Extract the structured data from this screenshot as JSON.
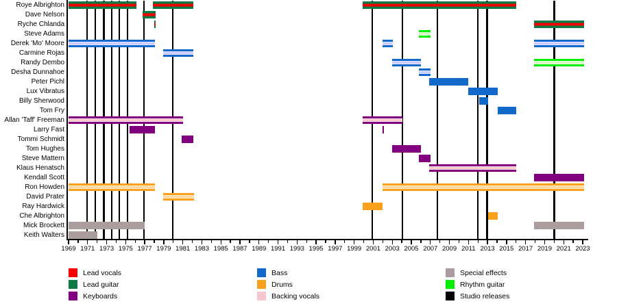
{
  "chart_data": {
    "type": "timeline",
    "title": "",
    "x_axis": {
      "min": 1969,
      "max": 2023,
      "tick_step": 1,
      "label_step": 2,
      "tick_labels": [
        "1969",
        "1971",
        "1973",
        "1975",
        "1977",
        "1979",
        "1981",
        "1983",
        "1985",
        "1987",
        "1989",
        "1991",
        "1993",
        "1995",
        "1997",
        "1999",
        "2001",
        "2003",
        "2005",
        "2007",
        "2009",
        "2011",
        "2013",
        "2015",
        "2017",
        "2019",
        "2021",
        "2023"
      ]
    },
    "roles": {
      "lead_vocals": {
        "label": "Lead vocals",
        "color": "#f40000"
      },
      "lead_guitar": {
        "label": "Lead guitar",
        "color": "#0e7a46"
      },
      "keyboards": {
        "label": "Keyboards",
        "color": "#800080"
      },
      "bass": {
        "label": "Bass",
        "color": "#1269c9"
      },
      "drums": {
        "label": "Drums",
        "color": "#f9a11c"
      },
      "backing_vocals": {
        "label": "Backing vocals",
        "color": "#f7c6cf"
      },
      "special_effects": {
        "label": "Special effects",
        "color": "#ab9d9d"
      },
      "rhythm_guitar": {
        "label": "Rhythm guitar",
        "color": "#00ef00"
      },
      "studio_releases": {
        "label": "Studio releases",
        "color": "#000000"
      },
      "bass_stripe": {
        "label": "",
        "color": "#ccccff"
      },
      "drums_stripe": {
        "label": "",
        "color": "#fcd9a0"
      },
      "rhythm_stripe": {
        "label": "",
        "color": "#d5f7c2"
      }
    },
    "members": [
      {
        "name": "Roye Albrighton",
        "bars": [
          {
            "start": 1969,
            "end": 1976.1,
            "role": "lead_guitar",
            "stripe": "lead_vocals"
          },
          {
            "start": 1977.85,
            "end": 1982.1,
            "role": "lead_guitar",
            "stripe": "lead_vocals"
          },
          {
            "start": 1999.9,
            "end": 2016.05,
            "role": "lead_guitar",
            "stripe": "lead_vocals"
          }
        ]
      },
      {
        "name": "Dave Nelson",
        "bars": [
          {
            "start": 1976.8,
            "end": 1978.15,
            "role": "lead_guitar",
            "stripe": "lead_vocals"
          }
        ]
      },
      {
        "name": "Ryche Chlanda",
        "bars": [
          {
            "start": 1978.0,
            "end": 1978.15,
            "role": "lead_guitar",
            "stripe": "lead_vocals"
          },
          {
            "start": 2017.9,
            "end": 2023.15,
            "role": "lead_guitar",
            "stripe": "lead_vocals"
          }
        ]
      },
      {
        "name": "Steve Adams",
        "bars": [
          {
            "start": 2005.8,
            "end": 2007.0,
            "role": "rhythm_guitar",
            "stripe": "rhythm_stripe"
          }
        ]
      },
      {
        "name": "Derek 'Mo' Moore",
        "bars": [
          {
            "start": 1969,
            "end": 1978.1,
            "role": "bass",
            "stripe": "bass_stripe"
          },
          {
            "start": 2001.95,
            "end": 2003.05,
            "role": "bass",
            "stripe": "bass_stripe"
          },
          {
            "start": 2017.9,
            "end": 2023.15,
            "role": "bass",
            "stripe": "bass_stripe"
          }
        ]
      },
      {
        "name": "Carmine Rojas",
        "bars": [
          {
            "start": 1978.95,
            "end": 1982.1,
            "role": "bass",
            "stripe": "bass_stripe"
          }
        ]
      },
      {
        "name": "Randy Dembo",
        "bars": [
          {
            "start": 2003.0,
            "end": 2006.0,
            "role": "bass",
            "stripe": "bass_stripe"
          },
          {
            "start": 2017.9,
            "end": 2023.15,
            "role": "rhythm_guitar",
            "stripe": "rhythm_stripe"
          }
        ]
      },
      {
        "name": "Desha Dunnahoe",
        "bars": [
          {
            "start": 2005.8,
            "end": 2007.0,
            "role": "bass",
            "stripe": "bass_stripe"
          }
        ]
      },
      {
        "name": "Peter Pichl",
        "bars": [
          {
            "start": 2006.9,
            "end": 2011.0,
            "role": "bass",
            "stripe": null
          }
        ]
      },
      {
        "name": "Lux Vibratus",
        "bars": [
          {
            "start": 2011.0,
            "end": 2014.1,
            "role": "bass",
            "stripe": null
          }
        ]
      },
      {
        "name": "Billy Sherwood",
        "bars": [
          {
            "start": 2012.1,
            "end": 2013.05,
            "role": "bass",
            "stripe": null
          }
        ]
      },
      {
        "name": "Tom Fry",
        "bars": [
          {
            "start": 2014.1,
            "end": 2016.05,
            "role": "bass",
            "stripe": null
          }
        ]
      },
      {
        "name": "Allan 'Taff' Freeman",
        "bars": [
          {
            "start": 1969,
            "end": 1981.0,
            "role": "keyboards",
            "stripe": "backing_vocals"
          },
          {
            "start": 1999.9,
            "end": 2004.1,
            "role": "keyboards",
            "stripe": "backing_vocals"
          }
        ]
      },
      {
        "name": "Larry Fast",
        "bars": [
          {
            "start": 1975.4,
            "end": 1978.1,
            "role": "keyboards",
            "stripe": null
          },
          {
            "start": 2002.0,
            "end": 2002.1,
            "role": "keyboards",
            "stripe": null
          }
        ]
      },
      {
        "name": "Tommi Schmidt",
        "bars": [
          {
            "start": 1980.9,
            "end": 1982.1,
            "role": "keyboards",
            "stripe": null
          }
        ]
      },
      {
        "name": "Tom Hughes",
        "bars": [
          {
            "start": 2003.0,
            "end": 2006.0,
            "role": "keyboards",
            "stripe": null
          }
        ]
      },
      {
        "name": "Steve Mattern",
        "bars": [
          {
            "start": 2005.8,
            "end": 2007.0,
            "role": "keyboards",
            "stripe": null
          }
        ]
      },
      {
        "name": "Klaus Henatsch",
        "bars": [
          {
            "start": 2006.9,
            "end": 2016.05,
            "role": "keyboards",
            "stripe": "backing_vocals"
          }
        ]
      },
      {
        "name": "Kendall Scott",
        "bars": [
          {
            "start": 2017.9,
            "end": 2023.15,
            "role": "keyboards",
            "stripe": null
          }
        ]
      },
      {
        "name": "Ron Howden",
        "bars": [
          {
            "start": 1969,
            "end": 1978.1,
            "role": "drums",
            "stripe": "drums_stripe"
          },
          {
            "start": 2001.95,
            "end": 2023.15,
            "role": "drums",
            "stripe": "drums_stripe"
          }
        ]
      },
      {
        "name": "David Prater",
        "bars": [
          {
            "start": 1978.95,
            "end": 1982.2,
            "role": "drums",
            "stripe": "drums_stripe"
          }
        ]
      },
      {
        "name": "Ray Hardwick",
        "bars": [
          {
            "start": 1999.9,
            "end": 2002.0,
            "role": "drums",
            "stripe": null
          }
        ]
      },
      {
        "name": "Che Albrighton",
        "bars": [
          {
            "start": 2013.05,
            "end": 2014.1,
            "role": "drums",
            "stripe": null
          }
        ]
      },
      {
        "name": "Mick Brockett",
        "bars": [
          {
            "start": 1969,
            "end": 1977.0,
            "role": "special_effects",
            "stripe": null
          },
          {
            "start": 2017.9,
            "end": 2023.15,
            "role": "special_effects",
            "stripe": null
          }
        ]
      },
      {
        "name": "Keith Walters",
        "bars": [
          {
            "start": 1969,
            "end": 1972.0,
            "role": "special_effects",
            "stripe": null
          }
        ]
      }
    ],
    "releases": {
      "role": "studio_releases",
      "years": [
        1970.95,
        1971.8,
        1972.7,
        1973.55,
        1974.35,
        1975.2,
        1976.9,
        1979.95,
        2000.9,
        2004.05,
        2007.75,
        2012.0,
        2012.95,
        2020.0
      ]
    }
  },
  "legend": {
    "columns": [
      [
        {
          "label": "Lead vocals",
          "role": "lead_vocals"
        },
        {
          "label": "Lead guitar",
          "role": "lead_guitar"
        },
        {
          "label": "Keyboards",
          "role": "keyboards"
        }
      ],
      [
        {
          "label": "Bass",
          "role": "bass"
        },
        {
          "label": "Drums",
          "role": "drums"
        },
        {
          "label": "Backing vocals",
          "role": "backing_vocals"
        }
      ],
      [
        {
          "label": "Special effects",
          "role": "special_effects"
        },
        {
          "label": "Rhythm guitar",
          "role": "rhythm_guitar"
        },
        {
          "label": "Studio releases",
          "role": "studio_releases"
        }
      ]
    ]
  }
}
